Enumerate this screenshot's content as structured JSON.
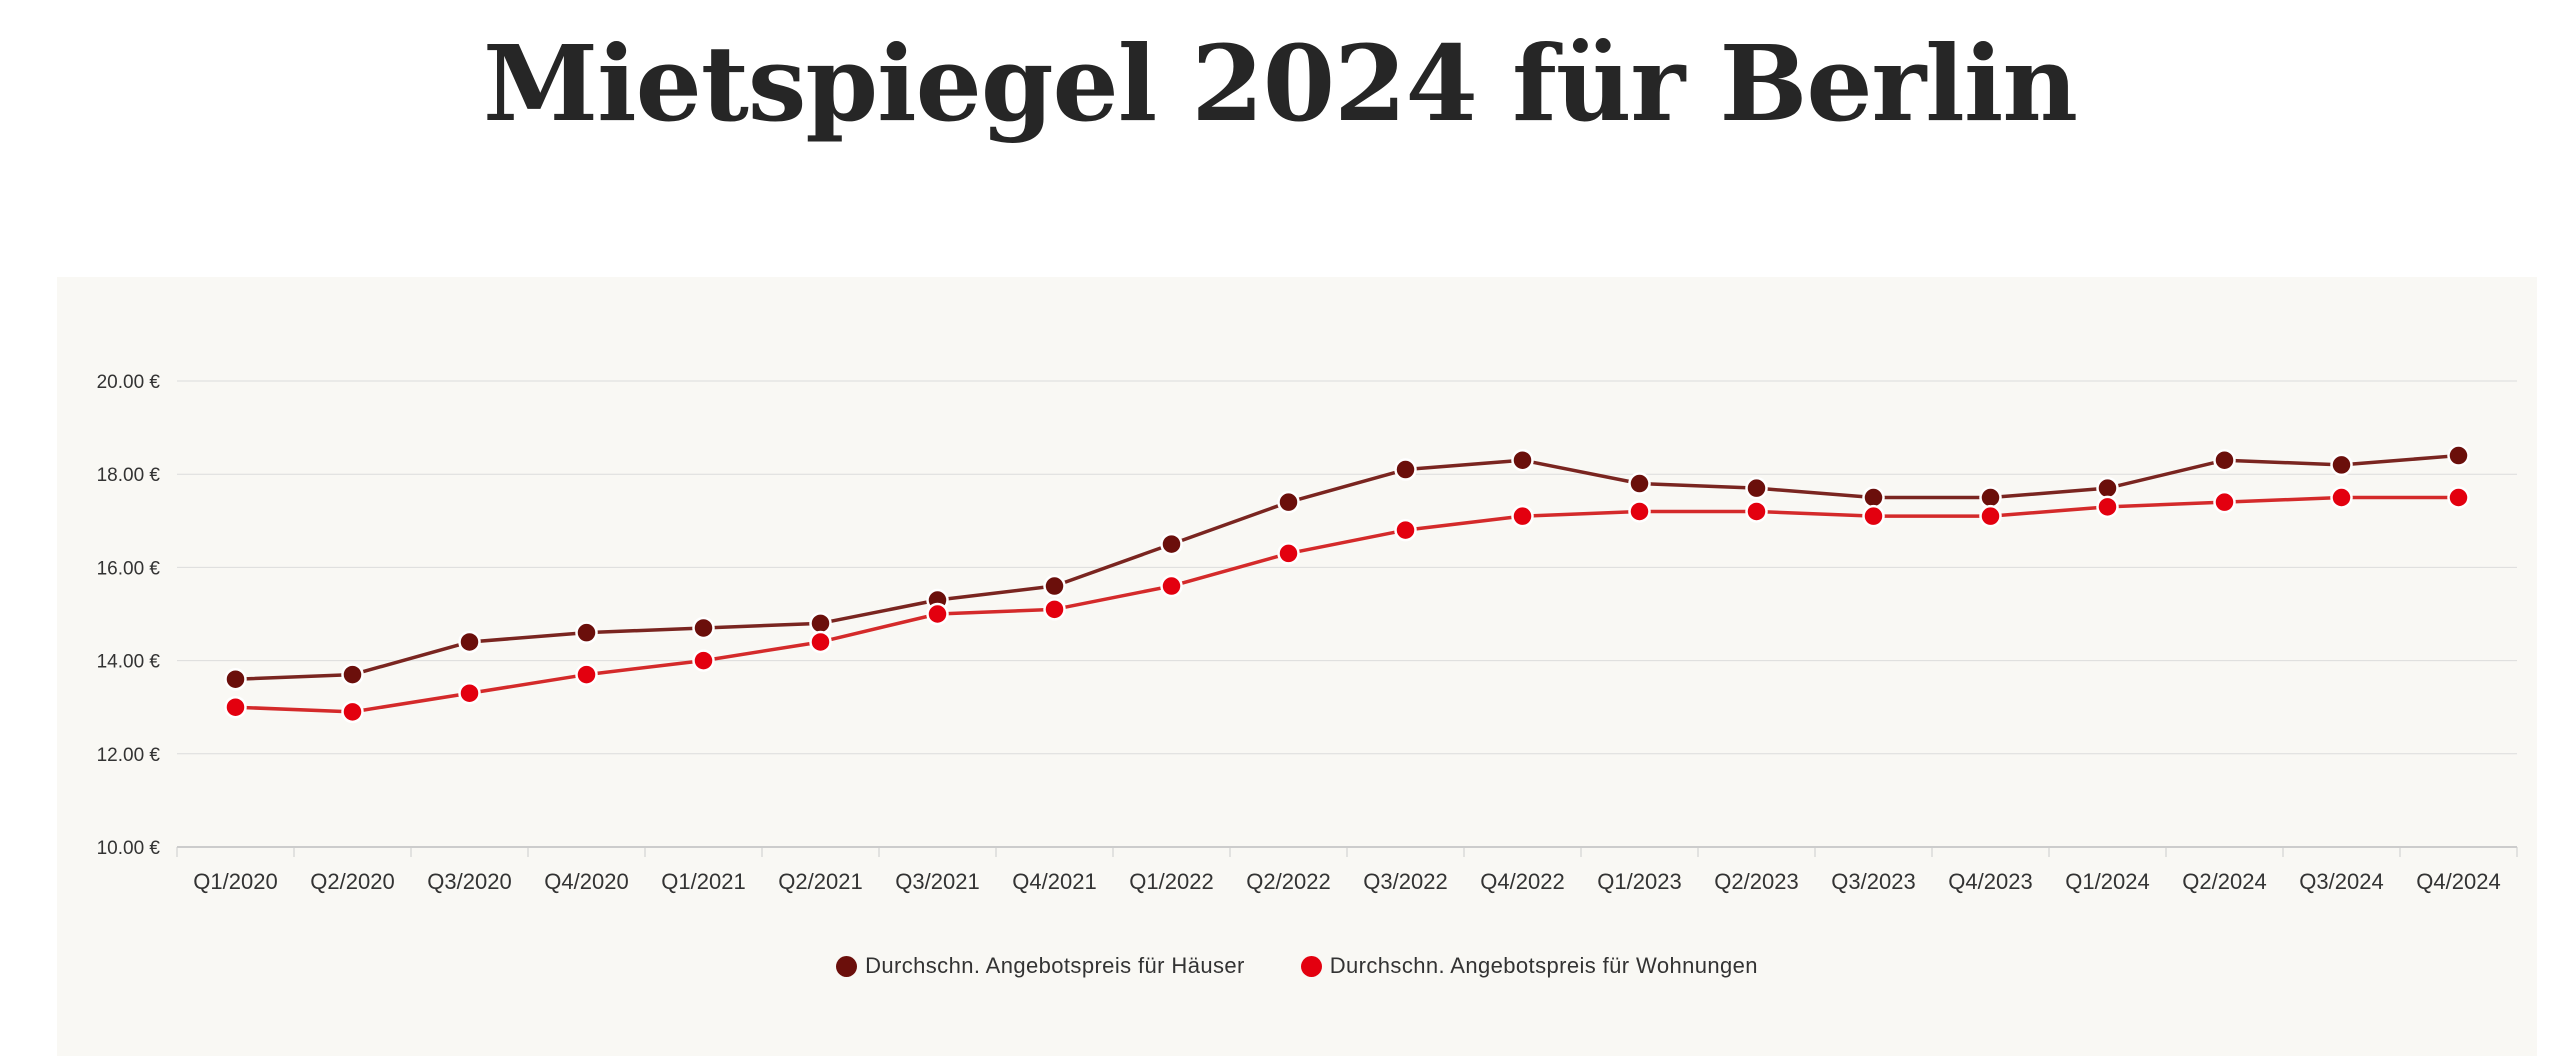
{
  "page": {
    "title": "Mietspiegel 2024 für Berlin"
  },
  "chart_data": {
    "type": "line",
    "title": "",
    "xlabel": "",
    "ylabel": "",
    "ylim": [
      10,
      20
    ],
    "y_ticks": [
      10,
      12,
      14,
      16,
      18,
      20
    ],
    "y_tick_format": "{v} €",
    "grid": true,
    "legend_position": "bottom",
    "categories": [
      "Q1/2020",
      "Q2/2020",
      "Q3/2020",
      "Q4/2020",
      "Q1/2021",
      "Q2/2021",
      "Q3/2021",
      "Q4/2021",
      "Q1/2022",
      "Q2/2022",
      "Q3/2022",
      "Q4/2022",
      "Q1/2023",
      "Q2/2023",
      "Q3/2023",
      "Q4/2023",
      "Q1/2024",
      "Q2/2024",
      "Q3/2024",
      "Q4/2024"
    ],
    "series": [
      {
        "name": "Durchschn. Angebotspreis für Häuser",
        "color": "#6b0f0b",
        "line_color": "#7a2520",
        "values": [
          13.6,
          13.7,
          14.4,
          14.6,
          14.7,
          14.8,
          15.3,
          15.6,
          16.5,
          17.4,
          18.1,
          18.3,
          17.8,
          17.7,
          17.5,
          17.5,
          17.7,
          18.3,
          18.2,
          18.4
        ]
      },
      {
        "name": "Durchschn. Angebotspreis für Wohnungen",
        "color": "#e3000f",
        "line_color": "#d42a2a",
        "values": [
          13.0,
          12.9,
          13.3,
          13.7,
          14.0,
          14.4,
          15.0,
          15.1,
          15.6,
          16.3,
          16.8,
          17.1,
          17.2,
          17.2,
          17.1,
          17.1,
          17.3,
          17.4,
          17.5,
          17.5
        ]
      }
    ]
  },
  "colors": {
    "grid": "#dcdcdc",
    "axis": "#cccccc",
    "tick_text": "#333333",
    "panel_bg": "#f9f8f4"
  }
}
